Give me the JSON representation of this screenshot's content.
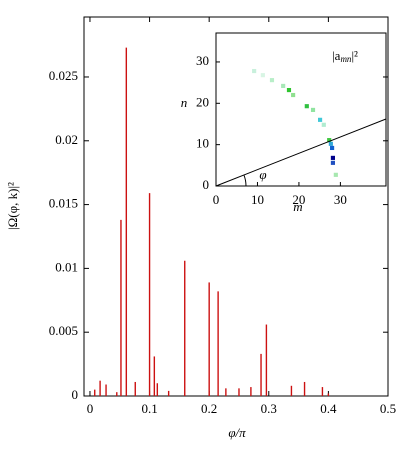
{
  "chart_data": [
    {
      "type": "spikes",
      "x_label": "φ/π",
      "y_label": "|Ω(φ, k)|²",
      "color": "#cc1111",
      "x": [
        0.008,
        0.017,
        0.027,
        0.045,
        0.052,
        0.061,
        0.076,
        0.1,
        0.108,
        0.113,
        0.132,
        0.159,
        0.2,
        0.215,
        0.228,
        0.25,
        0.27,
        0.287,
        0.296,
        0.338,
        0.36,
        0.39,
        0.4
      ],
      "values": [
        0.0005,
        0.0012,
        0.0009,
        0.0003,
        0.0138,
        0.0273,
        0.0011,
        0.0159,
        0.0031,
        0.001,
        0.0004,
        0.0106,
        0.0089,
        0.0082,
        0.0006,
        0.0006,
        0.0007,
        0.0033,
        0.0056,
        0.0008,
        0.0011,
        0.0007,
        0.0002
      ],
      "xlim": [
        -0.01,
        0.5
      ],
      "ylim": [
        0,
        0.0297
      ],
      "xticks": [
        0,
        0.1,
        0.2,
        0.3,
        0.4,
        0.5
      ],
      "yticks": [
        0,
        0.005,
        0.01,
        0.015,
        0.02,
        0.025
      ]
    },
    {
      "type": "heatmap",
      "x_label": "m",
      "y_label": "n",
      "label": {
        "base": "|a",
        "sub": "mn",
        "tail": "|²"
      },
      "angle_label": "φ",
      "x": [
        9.2,
        11.3,
        13.5,
        16.2,
        17.6,
        18.6,
        21.9,
        23.4,
        25.1,
        26.0,
        27.3,
        27.7,
        28.0,
        28.2,
        28.2,
        28.9
      ],
      "y": [
        27.8,
        26.8,
        25.6,
        24.2,
        23.2,
        22.0,
        19.3,
        18.4,
        16.0,
        14.8,
        11.1,
        10.2,
        9.2,
        6.8,
        5.6,
        2.7
      ],
      "colors": [
        "#c8f0dc",
        "#d8f5e4",
        "#b8eec8",
        "#a8e8b8",
        "#2fc42f",
        "#90e090",
        "#30c040",
        "#90e4a0",
        "#40c8d8",
        "#b0ecd0",
        "#40c840",
        "#30a8d8",
        "#1060d0",
        "#00008b",
        "#2050c0",
        "#a8e8b0"
      ],
      "xlim": [
        0,
        41
      ],
      "ylim": [
        0,
        37
      ],
      "xticks": [
        0,
        10,
        20,
        30
      ],
      "yticks": [
        0,
        10,
        20,
        30
      ]
    }
  ]
}
